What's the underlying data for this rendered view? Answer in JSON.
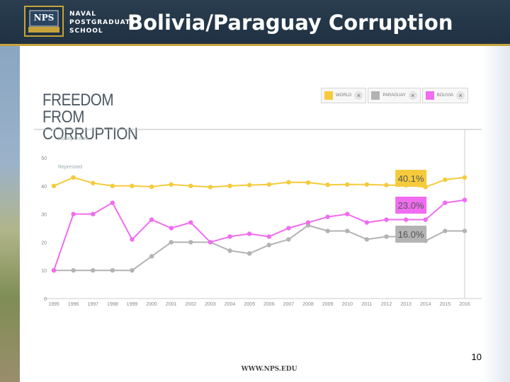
{
  "header": {
    "logo_lines": [
      "NAVAL",
      "POSTGRADUATE",
      "SCHOOL"
    ],
    "logo_badge": "NPS",
    "title": "Bolivia/Paraguay Corruption"
  },
  "legend": [
    {
      "label": "WORLD",
      "color": "#f5cb3c"
    },
    {
      "label": "PARAGUAY",
      "color": "#b3b3b3"
    },
    {
      "label": "BOLIVIA",
      "color": "#f06cf0"
    }
  ],
  "slide_number": "10",
  "footer": {
    "url": "WWW.NPS.EDU"
  },
  "chart_data": {
    "type": "line",
    "title": [
      "FREEDOM FROM",
      "CORRUPTION"
    ],
    "band_labels": [
      "Mostly Unfree",
      "Repressed"
    ],
    "x": [
      "1995",
      "1996",
      "1997",
      "1998",
      "1999",
      "2000",
      "2001",
      "2002",
      "2003",
      "2004",
      "2005",
      "2006",
      "2007",
      "2008",
      "2009",
      "2010",
      "2011",
      "2012",
      "2013",
      "2014",
      "2015",
      "2016"
    ],
    "ylim": [
      0,
      50
    ],
    "yticks": [
      0,
      10,
      20,
      30,
      40,
      50
    ],
    "series": [
      {
        "name": "WORLD",
        "color": "#f5cb3c",
        "values": [
          40,
          43,
          41,
          40,
          40,
          39.7,
          40.5,
          40,
          39.6,
          40,
          40.3,
          40.5,
          41.3,
          41.2,
          40.4,
          40.5,
          40.5,
          40.3,
          40.2,
          39.6,
          42.2,
          43
        ]
      },
      {
        "name": "PARAGUAY",
        "color": "#b3b3b3",
        "values": [
          10,
          10,
          10,
          10,
          10,
          15,
          20,
          20,
          20,
          17,
          16,
          19,
          21,
          26,
          24,
          24,
          21,
          22,
          22,
          20.5,
          24,
          24
        ]
      },
      {
        "name": "BOLIVIA",
        "color": "#f06cf0",
        "values": [
          10,
          30,
          30,
          34,
          21,
          28,
          25,
          27,
          20,
          22,
          23,
          22,
          25,
          27,
          29,
          30,
          27,
          28,
          28,
          28,
          34,
          35
        ]
      }
    ],
    "annotations": [
      {
        "series": "WORLD",
        "label": "40.1%",
        "bg": "#f5cb3c"
      },
      {
        "series": "BOLIVIA",
        "label": "23.0%",
        "bg": "#f06cf0"
      },
      {
        "series": "PARAGUAY",
        "label": "16.0%",
        "bg": "#b3b3b3"
      }
    ],
    "grid": false
  }
}
